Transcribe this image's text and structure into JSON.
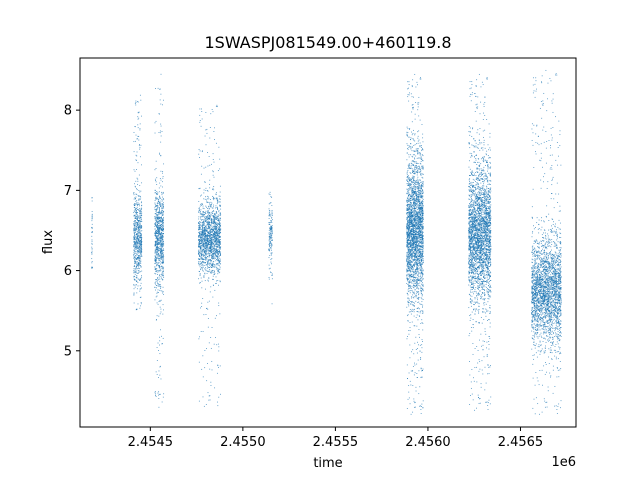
{
  "chart_data": {
    "type": "scatter",
    "title": "1SWASPJ081549.00+460119.8",
    "xlabel": "time",
    "ylabel": "flux",
    "x_offset_label": "1e6",
    "x_scale": 1000000,
    "xlim": [
      2.45412,
      2.4568
    ],
    "ylim": [
      4.05,
      8.65
    ],
    "x_ticks": [
      2.4545,
      2.455,
      2.4555,
      2.456,
      2.4565
    ],
    "x_tick_labels": [
      "2.4545",
      "2.4550",
      "2.4555",
      "2.4560",
      "2.4565"
    ],
    "y_ticks": [
      5,
      6,
      7,
      8
    ],
    "y_tick_labels": [
      "5",
      "6",
      "7",
      "8"
    ],
    "grid": false,
    "marker_color": "#1f77b4",
    "series": [
      {
        "name": "",
        "clusters": [
          {
            "x_center": 2454185,
            "x_spread": 2,
            "y_center": 6.45,
            "y_core_spread": 0.3,
            "y_min": 6.0,
            "y_max": 7.1,
            "n": 40
          },
          {
            "x_center": 2454432,
            "x_spread": 22,
            "y_center": 6.4,
            "y_core_spread": 0.28,
            "y_min": 5.5,
            "y_max": 8.2,
            "n": 700
          },
          {
            "x_center": 2454548,
            "x_spread": 24,
            "y_center": 6.4,
            "y_core_spread": 0.3,
            "y_min": 4.25,
            "y_max": 8.45,
            "n": 900
          },
          {
            "x_center": 2454820,
            "x_spread": 60,
            "y_center": 6.4,
            "y_core_spread": 0.22,
            "y_min": 4.3,
            "y_max": 8.1,
            "n": 1700
          },
          {
            "x_center": 2455150,
            "x_spread": 10,
            "y_center": 6.45,
            "y_core_spread": 0.2,
            "y_min": 5.55,
            "y_max": 7.0,
            "n": 150
          },
          {
            "x_center": 2455930,
            "x_spread": 45,
            "y_center": 6.5,
            "y_core_spread": 0.42,
            "y_min": 4.2,
            "y_max": 8.45,
            "n": 2800
          },
          {
            "x_center": 2456280,
            "x_spread": 60,
            "y_center": 6.45,
            "y_core_spread": 0.4,
            "y_min": 4.25,
            "y_max": 8.45,
            "n": 3000
          },
          {
            "x_center": 2456640,
            "x_spread": 80,
            "y_center": 5.75,
            "y_core_spread": 0.32,
            "y_min": 4.2,
            "y_max": 8.5,
            "n": 2600
          }
        ]
      }
    ]
  }
}
